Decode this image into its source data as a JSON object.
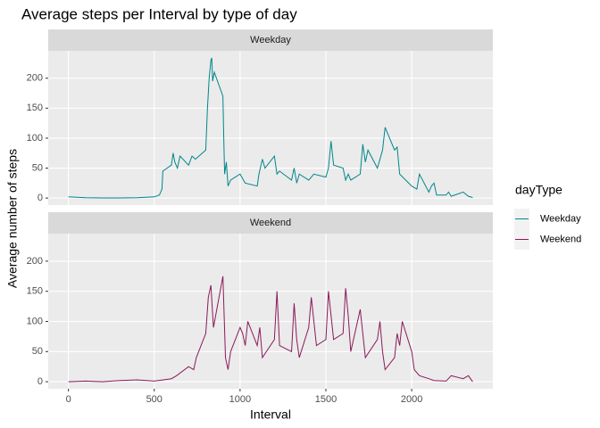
{
  "chart_data": {
    "type": "line",
    "title": "Average steps per Interval by type of day",
    "x_label": "Interval",
    "y_label": "Average number of steps",
    "legend_title": "dayType",
    "xlim": [
      -117.75,
      2472.75
    ],
    "xticks": [
      0,
      500,
      1000,
      1500,
      2000
    ],
    "ylim": [
      -11.7,
      245.7
    ],
    "yticks": [
      0,
      50,
      100,
      150,
      200
    ],
    "grid": true,
    "series": [
      {
        "name": "Weekday",
        "color": "#00868B",
        "x": [
          0,
          100,
          200,
          300,
          400,
          500,
          530,
          545,
          550,
          600,
          610,
          620,
          635,
          650,
          700,
          720,
          740,
          800,
          810,
          820,
          830,
          835,
          840,
          850,
          900,
          905,
          910,
          920,
          930,
          945,
          1000,
          1010,
          1030,
          1100,
          1110,
          1130,
          1145,
          1200,
          1215,
          1230,
          1300,
          1315,
          1330,
          1345,
          1400,
          1430,
          1500,
          1515,
          1530,
          1545,
          1600,
          1615,
          1630,
          1645,
          1700,
          1715,
          1730,
          1745,
          1800,
          1830,
          1845,
          1900,
          1915,
          1930,
          2000,
          2030,
          2045,
          2100,
          2115,
          2130,
          2145,
          2200,
          2215,
          2230,
          2300,
          2330,
          2355
        ],
        "values": [
          2,
          0.5,
          0.2,
          0.2,
          0.5,
          2,
          5,
          15,
          45,
          55,
          75,
          60,
          50,
          70,
          55,
          70,
          65,
          80,
          150,
          200,
          230,
          234,
          195,
          210,
          170,
          100,
          40,
          60,
          20,
          30,
          40,
          35,
          25,
          20,
          40,
          65,
          50,
          70,
          40,
          45,
          30,
          50,
          25,
          40,
          30,
          40,
          35,
          50,
          95,
          55,
          50,
          30,
          40,
          30,
          40,
          90,
          60,
          80,
          50,
          80,
          118,
          80,
          85,
          40,
          20,
          15,
          40,
          10,
          20,
          25,
          5,
          5,
          10,
          3,
          10,
          3,
          1
        ]
      },
      {
        "name": "Weekend",
        "color": "#8B1A5A",
        "x": [
          0,
          100,
          200,
          300,
          400,
          500,
          600,
          630,
          700,
          730,
          745,
          800,
          815,
          830,
          845,
          900,
          915,
          930,
          945,
          1000,
          1015,
          1030,
          1045,
          1100,
          1115,
          1130,
          1200,
          1215,
          1230,
          1300,
          1315,
          1330,
          1345,
          1400,
          1415,
          1430,
          1445,
          1500,
          1515,
          1530,
          1545,
          1600,
          1615,
          1630,
          1645,
          1700,
          1715,
          1730,
          1800,
          1815,
          1830,
          1845,
          1900,
          1915,
          1930,
          1945,
          2000,
          2015,
          2045,
          2100,
          2130,
          2200,
          2230,
          2300,
          2330,
          2355
        ],
        "values": [
          0,
          1,
          0,
          2,
          3,
          1,
          5,
          10,
          25,
          20,
          40,
          80,
          140,
          160,
          90,
          175,
          40,
          20,
          50,
          90,
          80,
          60,
          100,
          60,
          90,
          40,
          70,
          150,
          60,
          50,
          130,
          70,
          40,
          90,
          140,
          100,
          60,
          70,
          150,
          110,
          70,
          80,
          155,
          110,
          50,
          120,
          80,
          40,
          70,
          100,
          50,
          20,
          40,
          80,
          60,
          100,
          50,
          20,
          10,
          5,
          2,
          1,
          10,
          5,
          10,
          0
        ]
      }
    ]
  }
}
